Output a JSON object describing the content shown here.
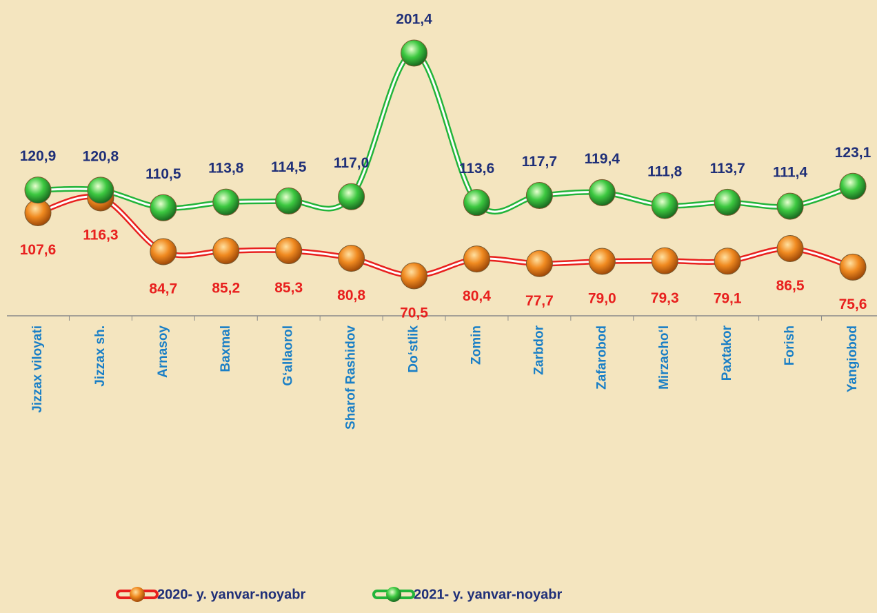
{
  "chart_data": {
    "type": "line",
    "categories": [
      "Jizzax viloyati",
      "Jizzax sh.",
      "Arnasoy",
      "Baxmal",
      "G‘allaorol",
      "Sharof Rashidov",
      "Do‘stlik",
      "Zomin",
      "Zarbdor",
      "Zafarobod",
      "Mirzacho‘l",
      "Paxtakor",
      "Forish",
      "Yangiobod"
    ],
    "series": [
      {
        "name": "2020- y. yanvar-noyabr",
        "color": "#e8201e",
        "values": [
          107.6,
          116.3,
          84.7,
          85.2,
          85.3,
          80.8,
          70.5,
          80.4,
          77.7,
          79.0,
          79.3,
          79.1,
          86.5,
          75.6
        ],
        "value_labels": [
          "107,6",
          "116,3",
          "84,7",
          "85,2",
          "85,3",
          "80,8",
          "70,5",
          "80,4",
          "77,7",
          "79,0",
          "79,3",
          "79,1",
          "86,5",
          "75,6"
        ]
      },
      {
        "name": "2021- y. yanvar-noyabr",
        "color": "#22b43a",
        "values": [
          120.9,
          120.8,
          110.5,
          113.8,
          114.5,
          117.0,
          201.4,
          113.6,
          117.7,
          119.4,
          111.8,
          113.7,
          111.4,
          123.1
        ],
        "value_labels": [
          "120,9",
          "120,8",
          "110,5",
          "113,8",
          "114,5",
          "117,0",
          "201,4",
          "113,6",
          "117,7",
          "119,4",
          "111,8",
          "113,7",
          "111,4",
          "123,1"
        ]
      }
    ]
  }
}
